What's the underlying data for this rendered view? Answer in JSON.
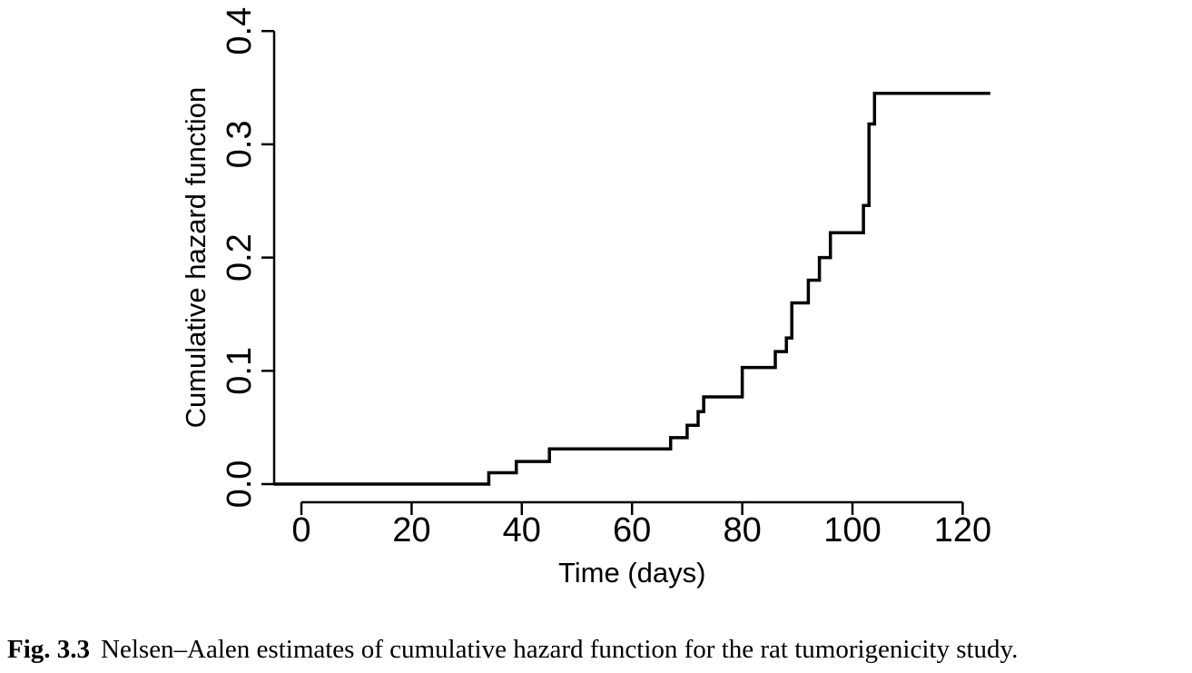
{
  "figure": {
    "caption_label": "Fig. 3.3",
    "caption_text": "Nelsen–Aalen estimates of cumulative hazard function for the rat tumorigenicity study."
  },
  "chart_data": {
    "type": "line",
    "line_style": "step-post",
    "title": "",
    "xlabel": "Time (days)",
    "ylabel": "Cumulative hazard function",
    "xlim": [
      -5,
      125
    ],
    "ylim": [
      0.0,
      0.4
    ],
    "x_ticks": [
      0,
      20,
      40,
      60,
      80,
      100,
      120
    ],
    "y_ticks": [
      "0.0",
      "0.1",
      "0.2",
      "0.3",
      "0.4"
    ],
    "grid": false,
    "legend": null,
    "curve_color": "#000000",
    "axis_color": "#000000",
    "series": [
      {
        "name": "Nelsen–Aalen cumulative hazard estimate",
        "draw_from_t": -5,
        "draw_to_t": 125,
        "start_value": 0.0,
        "steps": [
          {
            "t": 34,
            "H": 0.01
          },
          {
            "t": 39,
            "H": 0.02
          },
          {
            "t": 45,
            "H": 0.031
          },
          {
            "t": 67,
            "H": 0.041
          },
          {
            "t": 70,
            "H": 0.052
          },
          {
            "t": 72,
            "H": 0.064
          },
          {
            "t": 73,
            "H": 0.077
          },
          {
            "t": 80,
            "H": 0.103
          },
          {
            "t": 86,
            "H": 0.117
          },
          {
            "t": 88,
            "H": 0.129
          },
          {
            "t": 89,
            "H": 0.16
          },
          {
            "t": 92,
            "H": 0.18
          },
          {
            "t": 94,
            "H": 0.2
          },
          {
            "t": 96,
            "H": 0.222
          },
          {
            "t": 102,
            "H": 0.246
          },
          {
            "t": 103,
            "H": 0.318
          },
          {
            "t": 104,
            "H": 0.345
          }
        ]
      }
    ]
  }
}
